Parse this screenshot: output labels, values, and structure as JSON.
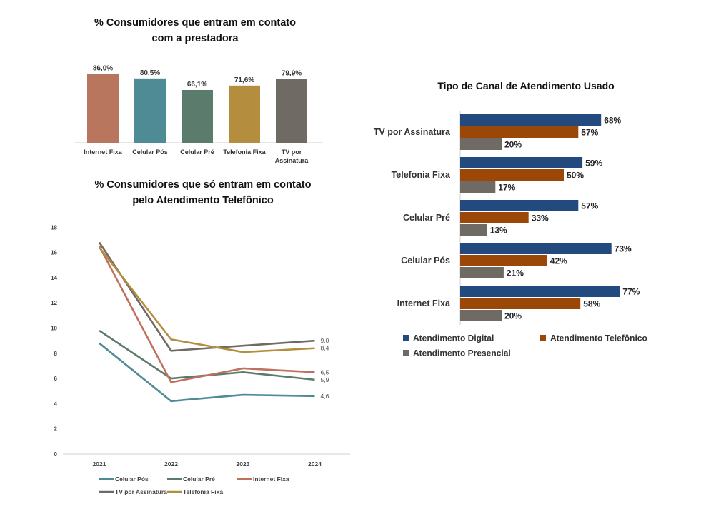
{
  "chart_data": [
    {
      "type": "bar",
      "title_lines": [
        "% Consumidores que entram em contato",
        "com a prestadora"
      ],
      "categories": [
        "Internet Fixa",
        "Celular Pós",
        "Celular Pré",
        "Telefonia Fixa",
        "TV por Assinatura"
      ],
      "category_label_lines": [
        [
          "Internet Fixa"
        ],
        [
          "Celular Pós"
        ],
        [
          "Celular Pré"
        ],
        [
          "Telefonia Fixa"
        ],
        [
          "TV por",
          "Assinatura"
        ]
      ],
      "values": [
        86.0,
        80.5,
        66.1,
        71.6,
        79.9
      ],
      "value_labels": [
        "86,0%",
        "80,5%",
        "66,1%",
        "71,6%",
        "79,9%"
      ],
      "colors": [
        "#b9765f",
        "#4e8b94",
        "#5b7b6c",
        "#b58d3f",
        "#6f6a63"
      ],
      "ylim": [
        0,
        100
      ]
    },
    {
      "type": "line",
      "title_lines": [
        "% Consumidores que só entram em contato",
        "pelo Atendimento Telefônico"
      ],
      "x": [
        "2021",
        "2022",
        "2023",
        "2024"
      ],
      "yticks": [
        "0",
        "2",
        "4",
        "6",
        "8",
        "10",
        "12",
        "14",
        "16",
        "18"
      ],
      "ylim": [
        0,
        18
      ],
      "series": [
        {
          "name": "Celular Pós",
          "values": [
            8.8,
            4.2,
            4.7,
            4.6
          ],
          "end_label": "4,6",
          "color": "#4e8b94"
        },
        {
          "name": "Celular Pré",
          "values": [
            9.8,
            6.0,
            6.5,
            5.9
          ],
          "end_label": "5,9",
          "color": "#5b7b6c"
        },
        {
          "name": "Internet Fixa",
          "values": [
            16.5,
            5.7,
            6.8,
            6.5
          ],
          "end_label": "6,5",
          "color": "#c0705f"
        },
        {
          "name": "TV por Assinatura",
          "values": [
            16.8,
            8.2,
            8.6,
            9.0
          ],
          "end_label": "9,0",
          "color": "#6f6a63"
        },
        {
          "name": "Telefonia Fixa",
          "values": [
            16.4,
            9.1,
            8.1,
            8.4
          ],
          "end_label": "8,4",
          "color": "#b58d3f"
        }
      ],
      "legend_rows": [
        [
          "Celular Pós",
          "Celular Pré",
          "Internet Fixa"
        ],
        [
          "TV por Assinatura",
          "Telefonia Fixa"
        ]
      ]
    },
    {
      "type": "bar",
      "orientation": "horizontal",
      "title": "Tipo de Canal de Atendimento Usado",
      "categories": [
        "TV por Assinatura",
        "Telefonia Fixa",
        "Celular Pré",
        "Celular Pós",
        "Internet Fixa"
      ],
      "series": [
        {
          "name": "Atendimento Digital",
          "values": [
            68,
            59,
            57,
            73,
            77
          ],
          "labels": [
            "68%",
            "59%",
            "57%",
            "73%",
            "77%"
          ],
          "color": "#234a7e"
        },
        {
          "name": "Atendimento Telefônico",
          "values": [
            57,
            50,
            33,
            42,
            58
          ],
          "labels": [
            "57%",
            "50%",
            "33%",
            "42%",
            "58%"
          ],
          "color": "#9a4708"
        },
        {
          "name": "Atendimento Presencial",
          "values": [
            20,
            17,
            13,
            21,
            20
          ],
          "labels": [
            "20%",
            "17%",
            "13%",
            "21%",
            "20%"
          ],
          "color": "#6f6a63"
        }
      ],
      "xlim": [
        0,
        100
      ]
    }
  ]
}
